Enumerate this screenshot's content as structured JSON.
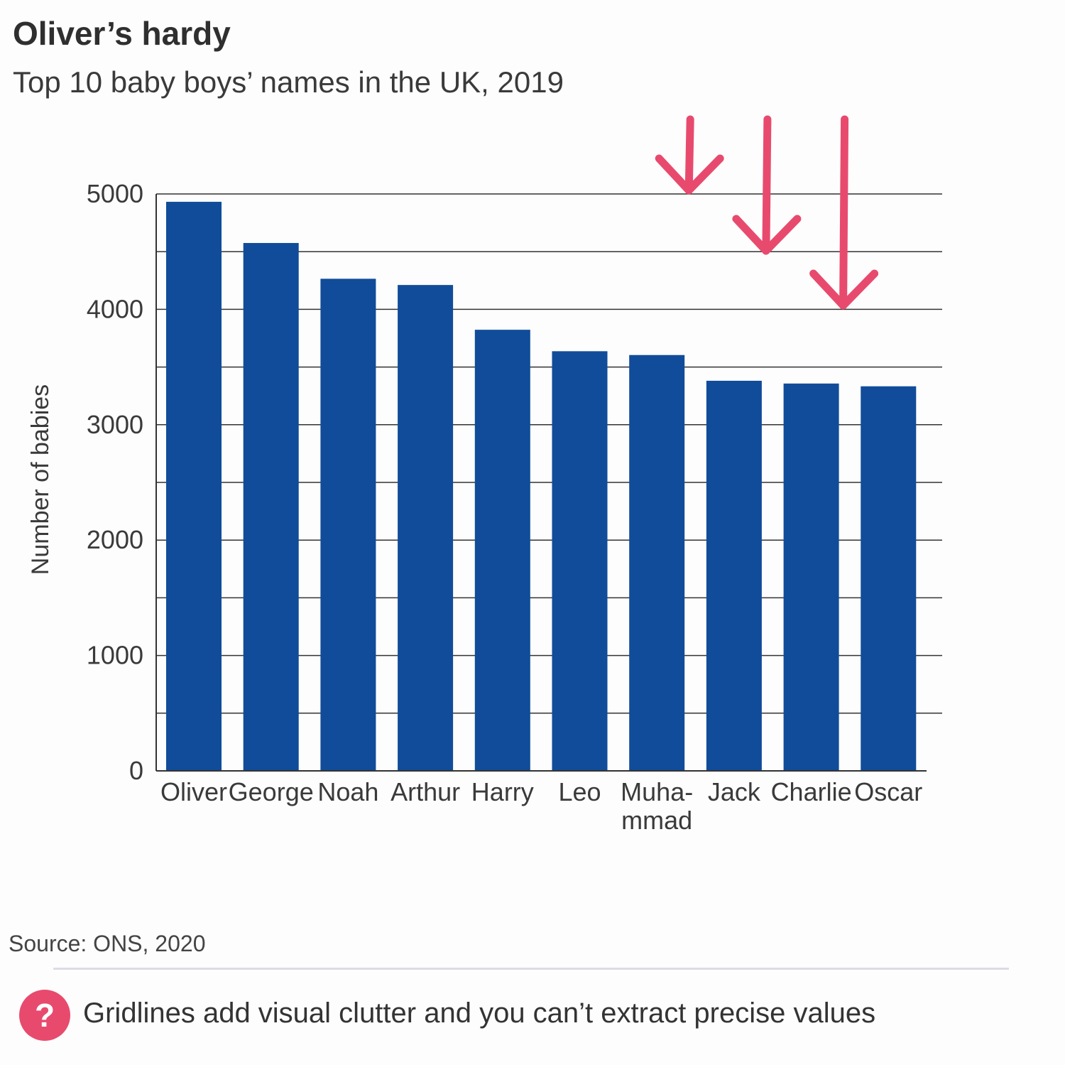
{
  "header": {
    "title": "Oliver’s hardy",
    "subtitle": "Top 10 baby boys’ names in the UK, 2019"
  },
  "footer": {
    "source": "Source: ONS, 2020",
    "note_icon": "?",
    "note": "Gridlines add visual clutter and you can’t extract precise values"
  },
  "colors": {
    "bar": "#104c99",
    "arrow": "#e84a6e",
    "grid": "#333333"
  },
  "chart_data": {
    "type": "bar",
    "categories": [
      "Oliver",
      "George",
      "Noah",
      "Arthur",
      "Harry",
      "Leo",
      "Muha-\nmmad",
      "Jack",
      "Charlie",
      "Oscar"
    ],
    "values": [
      4932,
      4575,
      4265,
      4211,
      3823,
      3637,
      3604,
      3381,
      3357,
      3333
    ],
    "ylabel": "Number of babies",
    "ylim": [
      0,
      5000
    ],
    "yticks": [
      0,
      1000,
      2000,
      3000,
      4000,
      5000
    ],
    "grid": true,
    "grid_step": 500,
    "annotations": [
      {
        "type": "arrow",
        "target": "Muha-\nmmad",
        "direction": "down"
      },
      {
        "type": "arrow",
        "target": "Jack",
        "direction": "down"
      },
      {
        "type": "arrow",
        "target": "Charlie",
        "direction": "down"
      }
    ]
  }
}
